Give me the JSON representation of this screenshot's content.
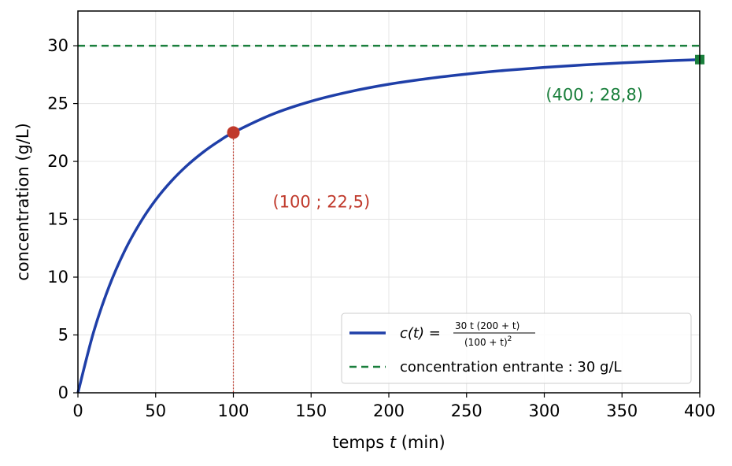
{
  "chart_data": {
    "type": "line",
    "xlabel_prefix": "temps ",
    "xlabel_var": "t",
    "xlabel_suffix": " (min)",
    "ylabel": "concentration (g/L)",
    "xlim": [
      0,
      400
    ],
    "ylim": [
      0,
      33
    ],
    "x_ticks": [
      0,
      50,
      100,
      150,
      200,
      250,
      300,
      350,
      400
    ],
    "y_ticks": [
      0,
      5,
      10,
      15,
      20,
      25,
      30
    ],
    "grid": true,
    "legend_position": "lower-right",
    "series": [
      {
        "kind": "curve",
        "formula": "30 t (200 + t) / (100 + t)^2",
        "color": "#1f3fa8",
        "x": [
          0,
          10,
          20,
          30,
          40,
          50,
          60,
          70,
          80,
          90,
          100,
          125,
          150,
          175,
          200,
          225,
          250,
          275,
          300,
          325,
          350,
          375,
          400
        ],
        "y": [
          0,
          5.21,
          9.17,
          12.25,
          14.69,
          16.67,
          18.28,
          19.62,
          20.74,
          21.69,
          22.5,
          24.07,
          25.2,
          26.03,
          26.67,
          27.16,
          27.55,
          27.87,
          28.13,
          28.34,
          28.52,
          28.67,
          28.8
        ]
      },
      {
        "kind": "asymptote",
        "color": "#1a7f3c",
        "y": 30
      }
    ],
    "legend": {
      "curve_lhs": "c(t) = ",
      "curve_num": "30 t (200 + t)",
      "curve_den": "(100 + t)",
      "curve_den_exp": "2",
      "asymptote": "concentration entrante : 30 g/L"
    },
    "points": [
      {
        "x": 100,
        "y": 22.5,
        "label": "(100 ; 22,5)",
        "color": "#c0392b",
        "marker": "circle"
      },
      {
        "x": 400,
        "y": 28.8,
        "label": "(400 ; 28,8)",
        "color": "#1a7f3c",
        "marker": "square"
      }
    ]
  }
}
